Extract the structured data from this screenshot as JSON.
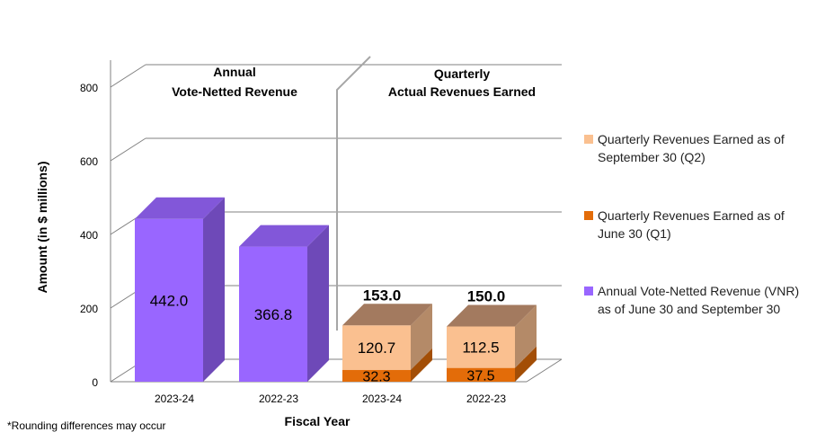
{
  "chart_data": {
    "type": "bar",
    "xlabel": "Fiscal Year",
    "ylabel": "Amount (in $ millions)",
    "ylim": [
      0,
      800
    ],
    "yticks": [
      0,
      200,
      400,
      600,
      800
    ],
    "grid": true,
    "legend_position": "right",
    "categories": [
      "2023-24",
      "2022-23",
      "2023-24",
      "2022-23"
    ],
    "section_labels": [
      {
        "line1": "Annual",
        "line2": "Vote-Netted Revenue"
      },
      {
        "line1": "Quarterly",
        "line2": "Actual Revenues Earned"
      }
    ],
    "annual_series": {
      "name": "Annual Vote-Netted Revenue (VNR) as of June 30 and September 30",
      "values": [
        442.0,
        366.8
      ],
      "labels": [
        "442.0",
        "366.8"
      ],
      "color": "#9966ff"
    },
    "quarterly_series": [
      {
        "name": "Quarterly Revenues Earned as of June 30 (Q1)",
        "values": [
          32.3,
          37.5
        ],
        "labels": [
          "32.3",
          "37.5"
        ],
        "color": "#e36c09"
      },
      {
        "name": "Quarterly Revenues Earned as of September 30 (Q2)",
        "values": [
          120.7,
          112.5
        ],
        "labels": [
          "120.7",
          "112.5"
        ],
        "color": "#fac090"
      }
    ],
    "quarterly_totals": [
      "153.0",
      "150.0"
    ],
    "legend": [
      {
        "label": "Quarterly Revenues Earned as of September 30 (Q2)",
        "color": "#fac090"
      },
      {
        "label": "Quarterly Revenues Earned as of June 30 (Q1)",
        "color": "#e36c09"
      },
      {
        "label": "Annual Vote-Netted Revenue (VNR) as of June 30 and September 30",
        "color": "#9966ff"
      }
    ]
  },
  "footnote": "*Rounding differences may occur"
}
